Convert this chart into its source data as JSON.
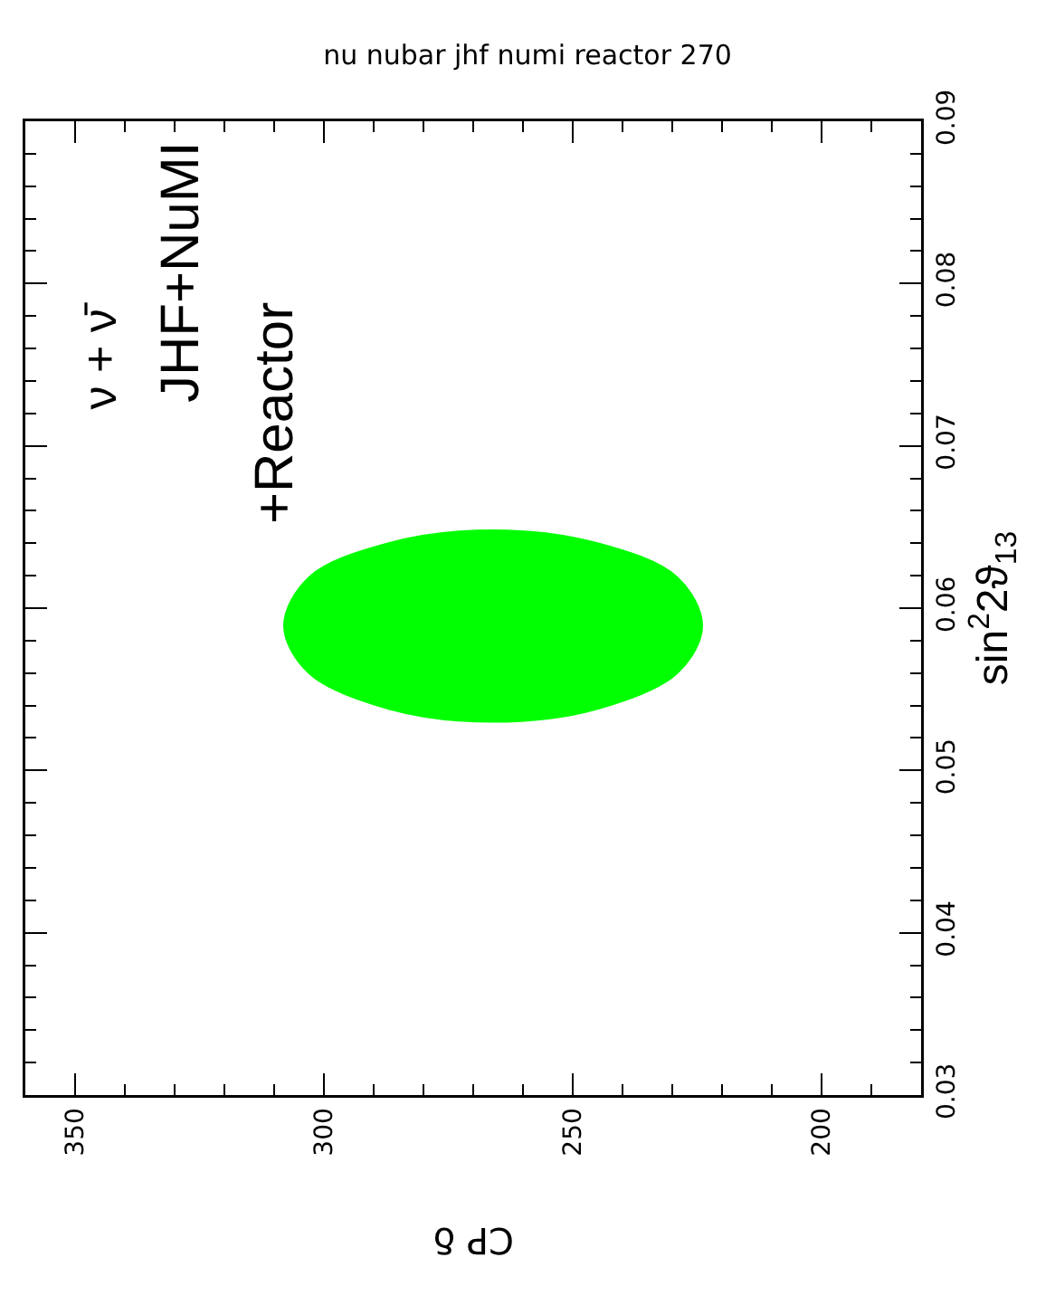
{
  "chart_data": {
    "type": "area",
    "title": "nu nubar jhf numi reactor 270",
    "xlabel": "CP δ",
    "ylabel": "sin$^{2}$2ϑ$_{13}$",
    "annotations": [
      "ν + ν̄",
      "JHF+NuMI",
      "+Reactor"
    ],
    "x": [
      266,
      287,
      303,
      308,
      303,
      287,
      266,
      245,
      229,
      224,
      229,
      245,
      266
    ],
    "series": [
      {
        "color": "#00ff00",
        "values": [
          0.0648,
          0.064,
          0.0619,
          0.0589,
          0.056,
          0.0538,
          0.053,
          0.0538,
          0.056,
          0.0589,
          0.0619,
          0.064,
          0.0648
        ]
      }
    ],
    "ylim": [
      0.03,
      0.09
    ],
    "yticks": [
      0.03,
      {
        "value": 0.032,
        "label": null
      },
      {
        "value": 0.034,
        "label": null
      },
      {
        "value": 0.036,
        "label": null
      },
      {
        "value": 0.038,
        "label": null
      },
      0.04,
      {
        "value": 0.042,
        "label": null
      },
      {
        "value": 0.044,
        "label": null
      },
      {
        "value": 0.046,
        "label": null
      },
      {
        "value": 0.048,
        "label": null
      },
      0.05,
      {
        "value": 0.052,
        "label": null
      },
      {
        "value": 0.054,
        "label": null
      },
      {
        "value": 0.056,
        "label": null
      },
      {
        "value": 0.058,
        "label": null
      },
      0.06,
      {
        "value": 0.062,
        "label": null
      },
      {
        "value": 0.064,
        "label": null
      },
      {
        "value": 0.066,
        "label": null
      },
      {
        "value": 0.068,
        "label": null
      },
      0.07,
      {
        "value": 0.072,
        "label": null
      },
      {
        "value": 0.074,
        "label": null
      },
      {
        "value": 0.076,
        "label": null
      },
      {
        "value": 0.078,
        "label": null
      },
      0.08,
      {
        "value": 0.082,
        "label": null
      },
      {
        "value": 0.084,
        "label": null
      },
      {
        "value": 0.086,
        "label": null
      },
      {
        "value": 0.088,
        "label": null
      },
      0.09
    ],
    "xlim": [
      360,
      180
    ],
    "xticks": [
      350,
      {
        "value": 340,
        "label": null
      },
      {
        "value": 330,
        "label": null
      },
      {
        "value": 320,
        "label": null
      },
      {
        "value": 310,
        "label": null
      },
      300,
      {
        "value": 290,
        "label": null
      },
      {
        "value": 280,
        "label": null
      },
      {
        "value": 270,
        "label": null
      },
      {
        "value": 260,
        "label": null
      },
      250,
      {
        "value": 240,
        "label": null
      },
      {
        "value": 230,
        "label": null
      },
      {
        "value": 220,
        "label": null
      },
      {
        "value": 210,
        "label": null
      },
      200,
      {
        "value": 190,
        "label": null
      }
    ],
    "grid": false
  }
}
